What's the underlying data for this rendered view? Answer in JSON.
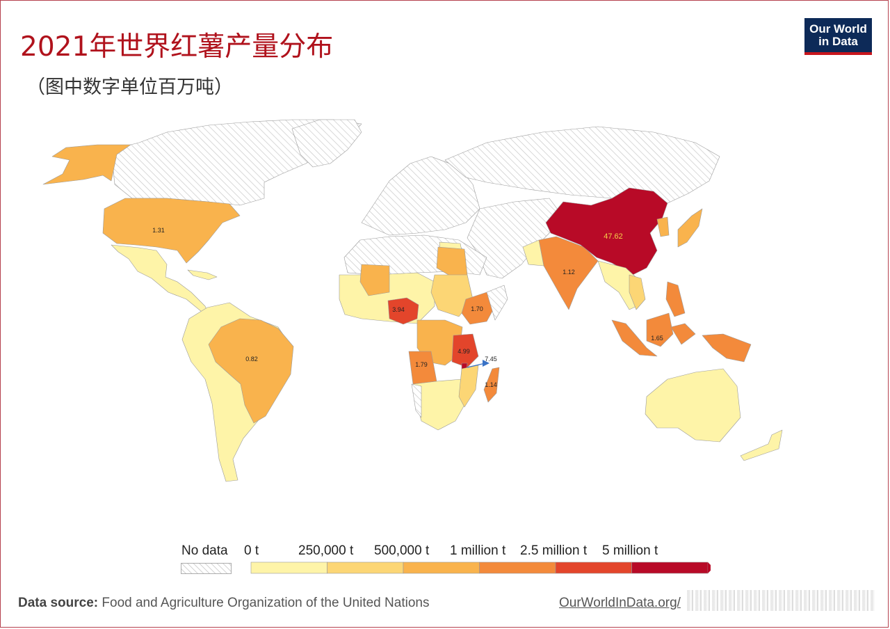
{
  "title": "2021年世界红薯产量分布",
  "subtitle": "（图中数字单位百万吨）",
  "logo": {
    "line1": "Our World",
    "line2": "in Data"
  },
  "colors": {
    "no_data_hatch": "#c8c8c8",
    "title": "#b0121c",
    "bins": [
      "#fef4a8",
      "#fcd675",
      "#f9b34d",
      "#f38a3b",
      "#e3452b",
      "#b80a27"
    ]
  },
  "legend": {
    "no_data": "No data",
    "labels": [
      "0 t",
      "250,000 t",
      "500,000 t",
      "1 million t",
      "2.5 million t",
      "5 million t"
    ]
  },
  "map_labels": {
    "china": "47.62",
    "tanzania": "4.99",
    "malawi": "7.45",
    "nigeria": "3.94",
    "angola": "1.79",
    "ethiopia": "1.70",
    "indonesia": "1.65",
    "usa": "1.31",
    "madagascar": "1.14",
    "india": "1.12",
    "brazil": "0.82"
  },
  "footer": {
    "source_label": "Data source:",
    "source_text": "Food and Agriculture Organization of the United Nations",
    "url": "OurWorldInData.org/"
  }
}
